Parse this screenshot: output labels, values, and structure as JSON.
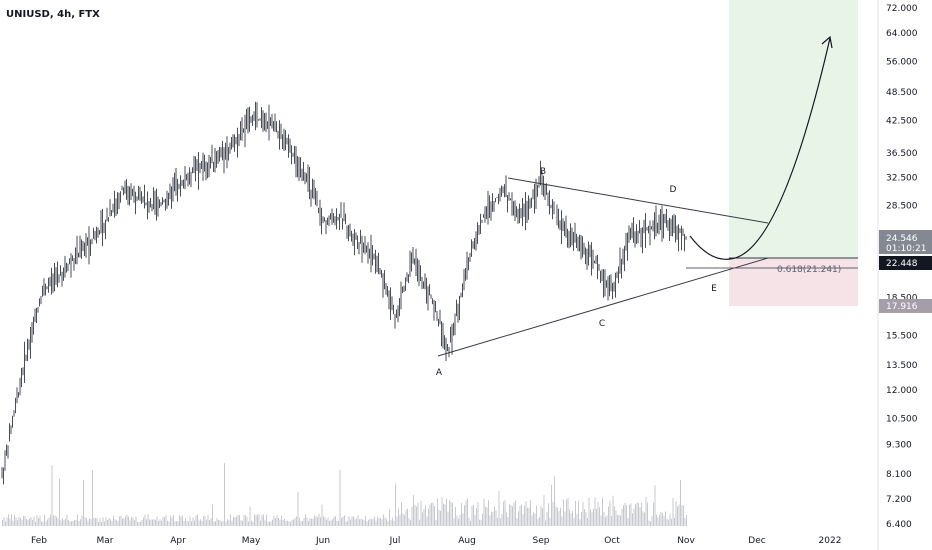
{
  "header": {
    "symbol": "UNIUSD, 4h, FTX"
  },
  "chart_data": {
    "type": "line",
    "scale": "log",
    "title": "",
    "x_ticks": [
      "Feb",
      "Mar",
      "Apr",
      "May",
      "Jun",
      "Jul",
      "Aug",
      "Sep",
      "Oct",
      "Nov",
      "Dec",
      "2022"
    ],
    "y_ticks": [
      "72.000",
      "64.000",
      "56.000",
      "48.500",
      "42.500",
      "36.500",
      "32.500",
      "28.500",
      "18.500",
      "15.500",
      "13.500",
      "12.000",
      "10.500",
      "9.300",
      "8.100",
      "7.200",
      "6.400"
    ],
    "series": [
      {
        "values": [
          [
            "Feb",
            8.0
          ],
          [
            "Feb",
            14.0
          ],
          [
            "Feb",
            19.0
          ],
          [
            "Feb",
            20.5
          ],
          [
            "Mar",
            26.0
          ],
          [
            "Mar",
            31.0
          ],
          [
            "Mar",
            29.0
          ],
          [
            "Mar",
            28.5
          ],
          [
            "Apr",
            31.0
          ],
          [
            "Apr",
            34.0
          ],
          [
            "Apr",
            35.0
          ],
          [
            "Apr",
            38.0
          ],
          [
            "May",
            43.0
          ],
          [
            "May",
            42.0
          ],
          [
            "May",
            38.0
          ],
          [
            "May",
            33.0
          ],
          [
            "Jun",
            26.5
          ],
          [
            "Jun",
            27.0
          ],
          [
            "Jun",
            24.0
          ],
          [
            "Jun",
            22.0
          ],
          [
            "Jul",
            17.0
          ],
          [
            "Jul",
            22.0
          ],
          [
            "Jul",
            18.5
          ],
          [
            "Jul",
            14.5
          ],
          [
            "Aug",
            21.5
          ],
          [
            "Aug",
            28.0
          ],
          [
            "Aug",
            30.5
          ],
          [
            "Aug",
            27.0
          ],
          [
            "Sep",
            32.0
          ],
          [
            "Sep",
            26.0
          ],
          [
            "Sep",
            24.0
          ],
          [
            "Sep",
            22.0
          ],
          [
            "Oct",
            19.0
          ],
          [
            "Oct",
            25.0
          ],
          [
            "Oct",
            25.5
          ],
          [
            "Oct",
            26.5
          ],
          [
            "Nov",
            24.5
          ]
        ]
      }
    ],
    "current_price": "24.546",
    "countdown": "01:10:21",
    "level_line": "22.448",
    "stop_level": "17.916",
    "fib_label": "0.618(21.241)",
    "wave_labels": [
      "A",
      "B",
      "C",
      "D",
      "E"
    ],
    "colors": {
      "candles": "#363a45",
      "volume": "#c7c9cf",
      "profit_zone": "#e7f4e7",
      "loss_zone": "#f6e3e8",
      "price_label": "#848892",
      "stop_label": "#a59ea9",
      "level_label": "#131722"
    }
  }
}
